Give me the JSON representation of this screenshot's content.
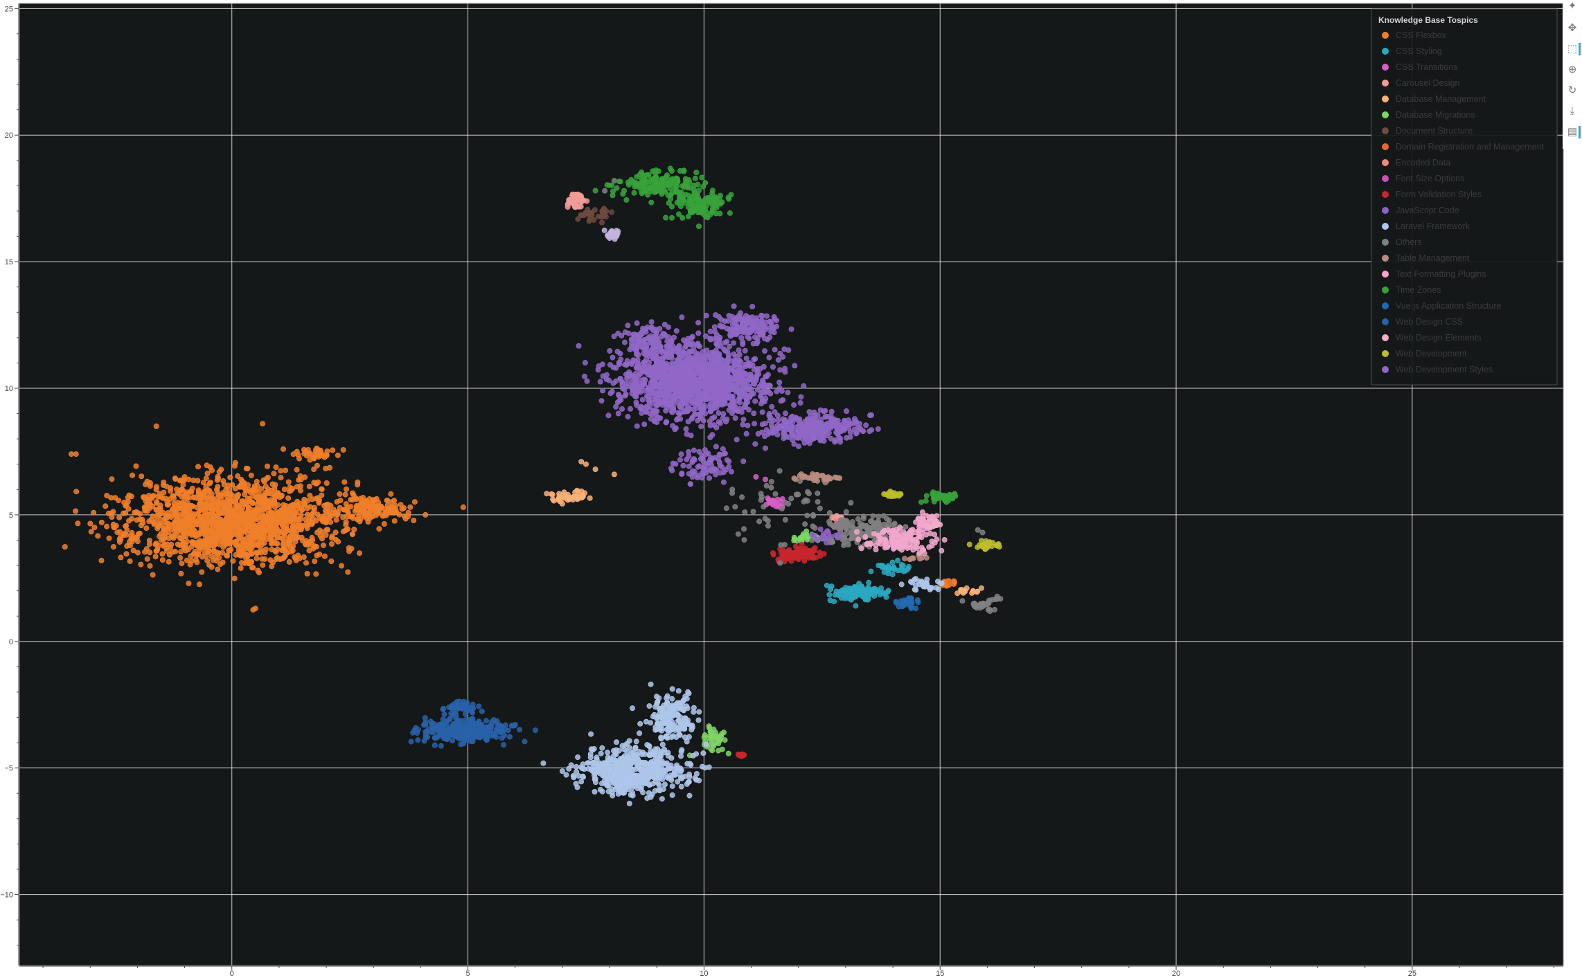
{
  "chart_data": {
    "type": "scatter",
    "title": "",
    "xlabel": "",
    "ylabel": "",
    "xlim": [
      -4.5,
      28.2
    ],
    "ylim": [
      -12.8,
      25.2
    ],
    "x_ticks": [
      0,
      5,
      10,
      15,
      20,
      25
    ],
    "y_ticks": [
      -10,
      -5,
      0,
      5,
      10,
      15,
      20,
      25
    ],
    "grid": true,
    "background": "#151819",
    "grid_color": "#e6e6e6",
    "legend": {
      "title": "Knowledge Base Tospics",
      "location": "top-right",
      "text_color": "#3b3b3b",
      "title_color": "#d4d4d4"
    },
    "series": [
      {
        "name": "CSS Flexbox",
        "color": "#f07f2a",
        "clusters": [
          {
            "cx": 0,
            "cy": 4.8,
            "sx": 1.9,
            "sy": 1.4,
            "n": 1600
          },
          {
            "cx": 3.0,
            "cy": 5.2,
            "sx": 0.6,
            "sy": 0.35,
            "n": 120
          },
          {
            "cx": 1.8,
            "cy": 7.4,
            "sx": 0.3,
            "sy": 0.25,
            "n": 40
          },
          {
            "cx": 15.2,
            "cy": 2.3,
            "sx": 0.2,
            "sy": 0.1,
            "n": 12
          }
        ],
        "points": [
          [
            -3.4,
            7.4
          ],
          [
            -3.3,
            7.4
          ],
          [
            4.9,
            5.3
          ],
          [
            4.1,
            5.0
          ],
          [
            0.5,
            1.3
          ],
          [
            0.45,
            1.25
          ],
          [
            0.65,
            8.6
          ],
          [
            -1.6,
            8.5
          ],
          [
            15.1,
            2.35
          ]
        ]
      },
      {
        "name": "CSS Styling",
        "color": "#2ba8c0",
        "clusters": [
          {
            "cx": 13.3,
            "cy": 1.9,
            "sx": 0.45,
            "sy": 0.25,
            "n": 120
          },
          {
            "cx": 14.0,
            "cy": 2.9,
            "sx": 0.3,
            "sy": 0.2,
            "n": 30
          }
        ]
      },
      {
        "name": "CSS Transitions",
        "color": "#d75ec4",
        "clusters": [
          {
            "cx": 11.5,
            "cy": 5.5,
            "sx": 0.2,
            "sy": 0.2,
            "n": 22
          }
        ],
        "points": [
          [
            11.1,
            6.5
          ],
          [
            11.3,
            6.4
          ]
        ]
      },
      {
        "name": "Carousel Design",
        "color": "#f19b96",
        "clusters": [
          {
            "cx": 7.3,
            "cy": 17.4,
            "sx": 0.18,
            "sy": 0.25,
            "n": 40
          },
          {
            "cx": 12.8,
            "cy": 4.9,
            "sx": 0.15,
            "sy": 0.1,
            "n": 8
          }
        ]
      },
      {
        "name": "Database Management",
        "color": "#f8b277",
        "clusters": [
          {
            "cx": 7.1,
            "cy": 5.7,
            "sx": 0.35,
            "sy": 0.2,
            "n": 45
          },
          {
            "cx": 15.6,
            "cy": 2.0,
            "sx": 0.25,
            "sy": 0.12,
            "n": 16
          }
        ],
        "points": [
          [
            7.4,
            7.1
          ],
          [
            7.5,
            7.0
          ],
          [
            7.7,
            6.8
          ],
          [
            8.1,
            6.6
          ]
        ]
      },
      {
        "name": "Database Migrations",
        "color": "#7fd466",
        "clusters": [
          {
            "cx": 10.2,
            "cy": -3.9,
            "sx": 0.2,
            "sy": 0.4,
            "n": 40
          },
          {
            "cx": 12.2,
            "cy": 4.1,
            "sx": 0.3,
            "sy": 0.15,
            "n": 28
          }
        ],
        "points": [
          [
            9.7,
            -4.5
          ]
        ]
      },
      {
        "name": "Document Structure",
        "color": "#6f4a3f",
        "clusters": [
          {
            "cx": 7.7,
            "cy": 16.9,
            "sx": 0.25,
            "sy": 0.2,
            "n": 30
          }
        ]
      },
      {
        "name": "Domain Registration and Management",
        "color": "#e8682a",
        "points": [
          [
            15.0,
            2.3
          ],
          [
            15.2,
            2.35
          ]
        ]
      },
      {
        "name": "Encoded Data",
        "color": "#f08a7b",
        "clusters": [
          {
            "cx": 12.9,
            "cy": 4.75,
            "sx": 0.1,
            "sy": 0.1,
            "n": 6
          }
        ]
      },
      {
        "name": "Font Size Options",
        "color": "#c951b5",
        "clusters": [
          {
            "cx": 12.9,
            "cy": 4.5,
            "sx": 0.15,
            "sy": 0.15,
            "n": 10
          }
        ]
      },
      {
        "name": "Form Validation Styles",
        "color": "#c8272d",
        "clusters": [
          {
            "cx": 12.0,
            "cy": 3.45,
            "sx": 0.35,
            "sy": 0.2,
            "n": 110
          },
          {
            "cx": 10.8,
            "cy": -4.5,
            "sx": 0.08,
            "sy": 0.05,
            "n": 14
          }
        ]
      },
      {
        "name": "JavaScript Code",
        "color": "#8d62c4",
        "clusters": [
          {
            "cx": 12.7,
            "cy": 4.2,
            "sx": 0.25,
            "sy": 0.2,
            "n": 25
          }
        ]
      },
      {
        "name": "Laravel Framework",
        "color": "#aec6ea",
        "clusters": [
          {
            "cx": 8.5,
            "cy": -5.1,
            "sx": 0.9,
            "sy": 0.7,
            "n": 520
          },
          {
            "cx": 9.3,
            "cy": -3.0,
            "sx": 0.4,
            "sy": 0.7,
            "n": 180
          },
          {
            "cx": 14.7,
            "cy": 2.2,
            "sx": 0.3,
            "sy": 0.2,
            "n": 30
          }
        ]
      },
      {
        "name": "Others",
        "color": "#808080",
        "clusters": [
          {
            "cx": 13.4,
            "cy": 4.4,
            "sx": 0.5,
            "sy": 0.45,
            "n": 120
          },
          {
            "cx": 15.9,
            "cy": 1.4,
            "sx": 0.25,
            "sy": 0.15,
            "n": 25
          },
          {
            "cx": 12.0,
            "cy": 5.1,
            "sx": 1.2,
            "sy": 1.1,
            "n": 60
          },
          {
            "cx": 16.2,
            "cy": 1.7,
            "sx": 0.2,
            "sy": 0.08,
            "n": 6
          }
        ],
        "points": [
          [
            7.9,
            17.8
          ],
          [
            8.1,
            18.2
          ],
          [
            15.8,
            4.4
          ],
          [
            15.9,
            4.3
          ]
        ]
      },
      {
        "name": "Table Management",
        "color": "#ba8b7f",
        "clusters": [
          {
            "cx": 12.4,
            "cy": 6.5,
            "sx": 0.35,
            "sy": 0.12,
            "n": 40
          },
          {
            "cx": 14.5,
            "cy": 3.3,
            "sx": 0.15,
            "sy": 0.1,
            "n": 10
          }
        ]
      },
      {
        "name": "Text Formatting Plugins",
        "color": "#f2a7cd",
        "clusters": [
          {
            "cx": 14.2,
            "cy": 4.0,
            "sx": 0.6,
            "sy": 0.4,
            "n": 130
          },
          {
            "cx": 14.7,
            "cy": 4.8,
            "sx": 0.25,
            "sy": 0.2,
            "n": 30
          }
        ]
      },
      {
        "name": "Time Zones",
        "color": "#37a33a",
        "clusters": [
          {
            "cx": 9.0,
            "cy": 18.1,
            "sx": 0.7,
            "sy": 0.4,
            "n": 160
          },
          {
            "cx": 9.9,
            "cy": 17.3,
            "sx": 0.5,
            "sy": 0.5,
            "n": 130
          },
          {
            "cx": 15.1,
            "cy": 5.7,
            "sx": 0.25,
            "sy": 0.15,
            "n": 40
          }
        ],
        "points": [
          [
            14.6,
            5.5
          ],
          [
            14.7,
            5.55
          ]
        ]
      },
      {
        "name": "Vue.js Application Structure",
        "color": "#236bb0",
        "clusters": [
          {
            "cx": 14.3,
            "cy": 1.5,
            "sx": 0.2,
            "sy": 0.15,
            "n": 30
          }
        ]
      },
      {
        "name": "Web Design CSS",
        "color": "#2962a8",
        "clusters": [
          {
            "cx": 5.0,
            "cy": -3.5,
            "sx": 0.8,
            "sy": 0.35,
            "n": 320
          },
          {
            "cx": 4.9,
            "cy": -2.6,
            "sx": 0.3,
            "sy": 0.25,
            "n": 40
          }
        ]
      },
      {
        "name": "Web Design Elements",
        "color": "#f3aeca",
        "clusters": [
          {
            "cx": 14.9,
            "cy": 4.6,
            "sx": 0.15,
            "sy": 0.12,
            "n": 12
          }
        ]
      },
      {
        "name": "Web Development",
        "color": "#bdbd2d",
        "clusters": [
          {
            "cx": 16.0,
            "cy": 3.8,
            "sx": 0.2,
            "sy": 0.12,
            "n": 30
          },
          {
            "cx": 14.0,
            "cy": 5.8,
            "sx": 0.2,
            "sy": 0.12,
            "n": 20
          }
        ]
      },
      {
        "name": "Web Development Styles",
        "color": "#9067c6",
        "clusters": [
          {
            "cx": 9.8,
            "cy": 10.3,
            "sx": 1.3,
            "sy": 1.2,
            "n": 1400
          },
          {
            "cx": 12.3,
            "cy": 8.4,
            "sx": 0.8,
            "sy": 0.45,
            "n": 300
          },
          {
            "cx": 8.8,
            "cy": 11.8,
            "sx": 0.4,
            "sy": 0.5,
            "n": 100
          },
          {
            "cx": 10.9,
            "cy": 12.4,
            "sx": 0.6,
            "sy": 0.5,
            "n": 150
          },
          {
            "cx": 10.0,
            "cy": 7.0,
            "sx": 0.5,
            "sy": 0.5,
            "n": 80
          }
        ]
      },
      {
        "name": "Laravel Framework",
        "color": "#c4b4e0",
        "clusters": [
          {
            "cx": 8.1,
            "cy": 16.1,
            "sx": 0.15,
            "sy": 0.15,
            "n": 22
          }
        ]
      }
    ]
  },
  "toolbar": {
    "icons": [
      "bokeh-logo-icon",
      "pan-icon",
      "box-zoom-icon",
      "wheel-zoom-icon",
      "reset-icon",
      "save-icon",
      "hover-icon"
    ]
  }
}
